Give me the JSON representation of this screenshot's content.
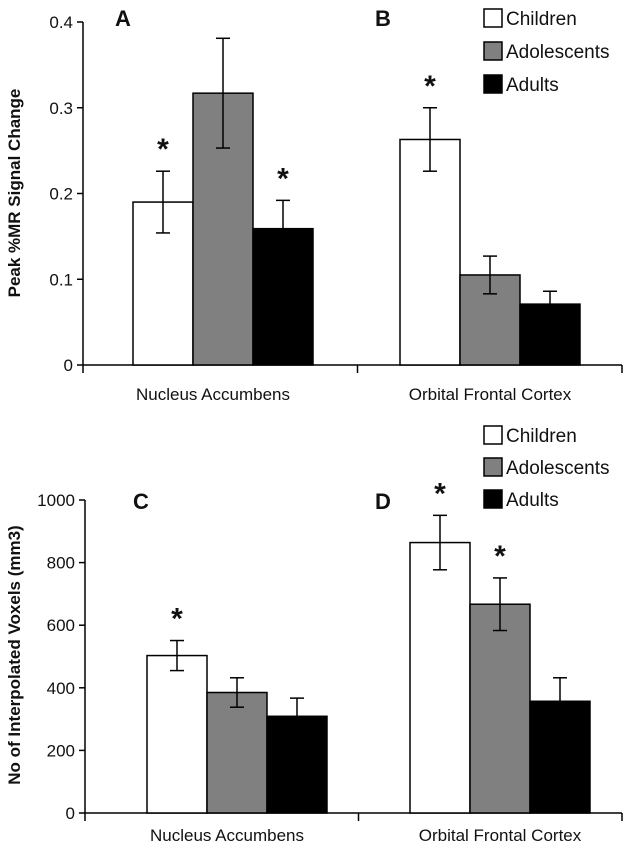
{
  "colors": {
    "Children": "#ffffff",
    "Adolescents": "#808080",
    "Adults": "#000000"
  },
  "chart_data": [
    {
      "type": "bar",
      "ylabel": "Peak %MR Signal Change",
      "ylim": [
        0,
        0.4
      ],
      "yticks": [
        0,
        0.1,
        0.2,
        0.3,
        0.4
      ],
      "ytick_labels": [
        "0",
        "0.1",
        "0.2",
        "0.3",
        "0.4"
      ],
      "categories": [
        "Nucleus Accumbens",
        "Orbital Frontal Cortex"
      ],
      "panel_labels": [
        "A",
        "B"
      ],
      "legend": [
        "Children",
        "Adolescents",
        "Adults"
      ],
      "series": [
        {
          "name": "Children",
          "values": [
            0.19,
            0.263
          ],
          "errors": [
            0.036,
            0.037
          ],
          "stars": [
            true,
            true
          ]
        },
        {
          "name": "Adolescents",
          "values": [
            0.317,
            0.105
          ],
          "errors": [
            0.064,
            0.022
          ],
          "stars": [
            false,
            false
          ]
        },
        {
          "name": "Adults",
          "values": [
            0.159,
            0.071
          ],
          "errors": [
            0.033,
            0.015
          ],
          "stars": [
            true,
            false
          ]
        }
      ],
      "star_label": "*"
    },
    {
      "type": "bar",
      "ylabel": "No of Interpolated Voxels (mm3)",
      "ylim": [
        0,
        1000
      ],
      "yticks": [
        0,
        200,
        400,
        600,
        800,
        1000
      ],
      "ytick_labels": [
        "0",
        "200",
        "400",
        "600",
        "800",
        "1000"
      ],
      "categories": [
        "Nucleus Accumbens",
        "Orbital Frontal Cortex"
      ],
      "panel_labels": [
        "C",
        "D"
      ],
      "legend": [
        "Children",
        "Adolescents",
        "Adults"
      ],
      "series": [
        {
          "name": "Children",
          "values": [
            503,
            864
          ],
          "errors": [
            48,
            87
          ],
          "stars": [
            true,
            true
          ]
        },
        {
          "name": "Adolescents",
          "values": [
            385,
            667
          ],
          "errors": [
            47,
            84
          ],
          "stars": [
            false,
            true
          ]
        },
        {
          "name": "Adults",
          "values": [
            309,
            357
          ],
          "errors": [
            58,
            75
          ],
          "stars": [
            false,
            false
          ]
        }
      ],
      "star_label": "*"
    }
  ]
}
